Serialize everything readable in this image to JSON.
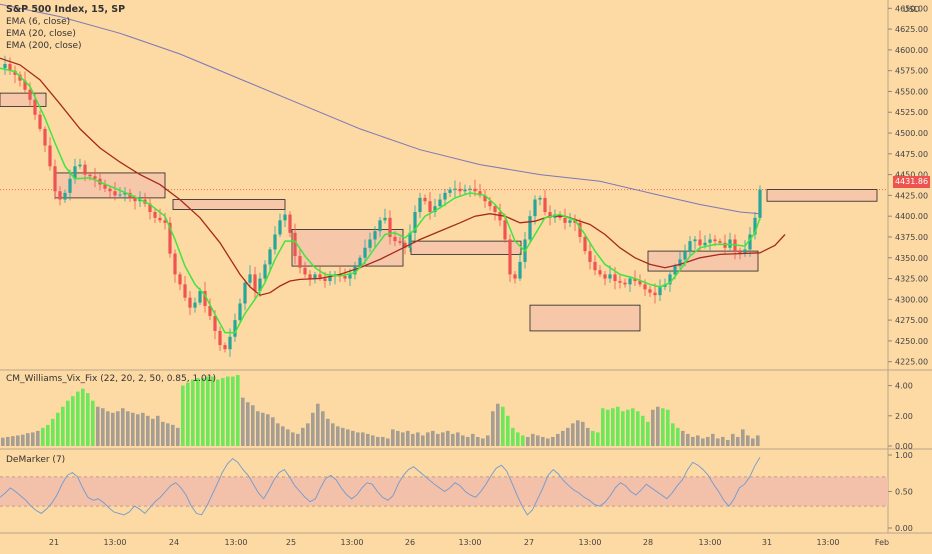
{
  "colors": {
    "background": "#fdd9a4",
    "up_candle": "#26a69a",
    "down_candle": "#ef5350",
    "ema6": "#3ee63e",
    "ema20": "#a52a1a",
    "ema200": "#7b78b8",
    "box_fill": "#f7c7a9",
    "vix_green": "#6de85a",
    "vix_gray": "#a79e93",
    "demarker_line": "#6e9bd1",
    "demarker_band": "#f3c0aa",
    "price_tag": "#ef5350"
  },
  "main_legend": {
    "symbol": "S&P 500 Index, 15, SP",
    "ema6": "EMA (6, close)",
    "ema20": "EMA (20, close)",
    "ema200": "EMA (200, close)"
  },
  "currency": "USD",
  "current_price": "4431.86",
  "vix_title": "CM_Williams_Vix_Fix (22, 20, 2, 50, 0.85, 1.01)",
  "demarker_title": "DeMarker (7)",
  "chart_data": {
    "type": "candlestick",
    "price_axis": {
      "min": 4215,
      "max": 4660,
      "ticks": [
        "4225.00",
        "4250.00",
        "4275.00",
        "4300.00",
        "4325.00",
        "4350.00",
        "4375.00",
        "4400.00",
        "4425.00",
        "4450.00",
        "4475.00",
        "4500.00",
        "4525.00",
        "4550.00",
        "4575.00",
        "4600.00",
        "4625.00",
        "4650.00"
      ]
    },
    "x_axis_labels": [
      "21",
      "13:00",
      "24",
      "13:00",
      "25",
      "13:00",
      "26",
      "13:00",
      "27",
      "13:00",
      "28",
      "13:00",
      "31",
      "13:00",
      "Feb"
    ],
    "close_path": [
      [
        0,
        4578
      ],
      [
        5,
        4583
      ],
      [
        10,
        4575
      ],
      [
        15,
        4570
      ],
      [
        20,
        4563
      ],
      [
        25,
        4552
      ],
      [
        30,
        4540
      ],
      [
        35,
        4522
      ],
      [
        40,
        4505
      ],
      [
        45,
        4485
      ],
      [
        50,
        4460
      ],
      [
        55,
        4430
      ],
      [
        60,
        4420
      ],
      [
        65,
        4428
      ],
      [
        70,
        4445
      ],
      [
        75,
        4460
      ],
      [
        80,
        4462
      ],
      [
        85,
        4450
      ],
      [
        90,
        4448
      ],
      [
        95,
        4445
      ],
      [
        100,
        4438
      ],
      [
        105,
        4433
      ],
      [
        110,
        4430
      ],
      [
        115,
        4425
      ],
      [
        120,
        4426
      ],
      [
        125,
        4428
      ],
      [
        130,
        4422
      ],
      [
        135,
        4418
      ],
      [
        140,
        4420
      ],
      [
        145,
        4415
      ],
      [
        150,
        4405
      ],
      [
        155,
        4398
      ],
      [
        160,
        4395
      ],
      [
        165,
        4392
      ],
      [
        170,
        4355
      ],
      [
        175,
        4330
      ],
      [
        180,
        4318
      ],
      [
        185,
        4302
      ],
      [
        190,
        4290
      ],
      [
        195,
        4296
      ],
      [
        200,
        4310
      ],
      [
        205,
        4292
      ],
      [
        210,
        4280
      ],
      [
        215,
        4262
      ],
      [
        220,
        4245
      ],
      [
        225,
        4240
      ],
      [
        230,
        4255
      ],
      [
        235,
        4275
      ],
      [
        240,
        4295
      ],
      [
        245,
        4320
      ],
      [
        250,
        4330
      ],
      [
        255,
        4310
      ],
      [
        260,
        4325
      ],
      [
        265,
        4342
      ],
      [
        270,
        4360
      ],
      [
        275,
        4378
      ],
      [
        280,
        4395
      ],
      [
        285,
        4402
      ],
      [
        290,
        4380
      ],
      [
        295,
        4352
      ],
      [
        300,
        4338
      ],
      [
        305,
        4330
      ],
      [
        310,
        4325
      ],
      [
        315,
        4330
      ],
      [
        320,
        4325
      ],
      [
        325,
        4322
      ],
      [
        330,
        4328
      ],
      [
        335,
        4330
      ],
      [
        340,
        4328
      ],
      [
        345,
        4325
      ],
      [
        350,
        4330
      ],
      [
        355,
        4340
      ],
      [
        360,
        4350
      ],
      [
        365,
        4362
      ],
      [
        370,
        4372
      ],
      [
        375,
        4382
      ],
      [
        380,
        4395
      ],
      [
        385,
        4398
      ],
      [
        390,
        4375
      ],
      [
        395,
        4370
      ],
      [
        400,
        4368
      ],
      [
        405,
        4362
      ],
      [
        410,
        4380
      ],
      [
        415,
        4405
      ],
      [
        420,
        4422
      ],
      [
        425,
        4418
      ],
      [
        430,
        4405
      ],
      [
        435,
        4412
      ],
      [
        440,
        4420
      ],
      [
        445,
        4428
      ],
      [
        450,
        4432
      ],
      [
        455,
        4433
      ],
      [
        460,
        4430
      ],
      [
        465,
        4432
      ],
      [
        470,
        4433
      ],
      [
        475,
        4430
      ],
      [
        480,
        4425
      ],
      [
        485,
        4418
      ],
      [
        490,
        4412
      ],
      [
        495,
        4405
      ],
      [
        500,
        4395
      ],
      [
        505,
        4372
      ],
      [
        510,
        4330
      ],
      [
        515,
        4325
      ],
      [
        520,
        4345
      ],
      [
        525,
        4372
      ],
      [
        530,
        4400
      ],
      [
        535,
        4420
      ],
      [
        540,
        4422
      ],
      [
        545,
        4405
      ],
      [
        550,
        4398
      ],
      [
        555,
        4402
      ],
      [
        560,
        4398
      ],
      [
        565,
        4392
      ],
      [
        570,
        4395
      ],
      [
        575,
        4392
      ],
      [
        580,
        4375
      ],
      [
        585,
        4358
      ],
      [
        590,
        4345
      ],
      [
        595,
        4335
      ],
      [
        600,
        4330
      ],
      [
        605,
        4325
      ],
      [
        610,
        4330
      ],
      [
        615,
        4322
      ],
      [
        620,
        4320
      ],
      [
        625,
        4318
      ],
      [
        630,
        4325
      ],
      [
        635,
        4322
      ],
      [
        640,
        4318
      ],
      [
        645,
        4312
      ],
      [
        650,
        4308
      ],
      [
        655,
        4305
      ],
      [
        660,
        4315
      ],
      [
        665,
        4318
      ],
      [
        670,
        4330
      ],
      [
        675,
        4340
      ],
      [
        680,
        4348
      ],
      [
        685,
        4358
      ],
      [
        690,
        4370
      ],
      [
        695,
        4372
      ],
      [
        700,
        4365
      ],
      [
        705,
        4368
      ],
      [
        710,
        4372
      ],
      [
        715,
        4370
      ],
      [
        720,
        4368
      ],
      [
        725,
        4362
      ],
      [
        730,
        4372
      ],
      [
        735,
        4358
      ],
      [
        740,
        4355
      ],
      [
        745,
        4360
      ],
      [
        750,
        4378
      ],
      [
        755,
        4398
      ],
      [
        760,
        4432
      ]
    ],
    "ema6_path": [
      [
        0,
        4578
      ],
      [
        15,
        4574
      ],
      [
        30,
        4556
      ],
      [
        45,
        4518
      ],
      [
        55,
        4488
      ],
      [
        65,
        4460
      ],
      [
        75,
        4445
      ],
      [
        90,
        4446
      ],
      [
        110,
        4436
      ],
      [
        130,
        4426
      ],
      [
        150,
        4414
      ],
      [
        165,
        4400
      ],
      [
        175,
        4372
      ],
      [
        185,
        4340
      ],
      [
        195,
        4318
      ],
      [
        205,
        4305
      ],
      [
        215,
        4282
      ],
      [
        225,
        4260
      ],
      [
        235,
        4260
      ],
      [
        245,
        4283
      ],
      [
        255,
        4300
      ],
      [
        265,
        4320
      ],
      [
        275,
        4348
      ],
      [
        285,
        4370
      ],
      [
        295,
        4370
      ],
      [
        305,
        4352
      ],
      [
        315,
        4338
      ],
      [
        325,
        4330
      ],
      [
        340,
        4328
      ],
      [
        355,
        4332
      ],
      [
        365,
        4345
      ],
      [
        375,
        4362
      ],
      [
        385,
        4378
      ],
      [
        395,
        4380
      ],
      [
        405,
        4374
      ],
      [
        415,
        4384
      ],
      [
        425,
        4400
      ],
      [
        440,
        4410
      ],
      [
        455,
        4422
      ],
      [
        470,
        4428
      ],
      [
        485,
        4425
      ],
      [
        495,
        4414
      ],
      [
        505,
        4400
      ],
      [
        515,
        4370
      ],
      [
        525,
        4358
      ],
      [
        535,
        4378
      ],
      [
        545,
        4398
      ],
      [
        560,
        4402
      ],
      [
        575,
        4395
      ],
      [
        585,
        4378
      ],
      [
        595,
        4358
      ],
      [
        605,
        4342
      ],
      [
        620,
        4330
      ],
      [
        635,
        4325
      ],
      [
        650,
        4318
      ],
      [
        660,
        4315
      ],
      [
        670,
        4320
      ],
      [
        680,
        4335
      ],
      [
        690,
        4352
      ],
      [
        700,
        4362
      ],
      [
        715,
        4366
      ],
      [
        730,
        4366
      ],
      [
        745,
        4364
      ],
      [
        755,
        4380
      ],
      [
        760,
        4398
      ]
    ],
    "ema20_path": [
      [
        0,
        4590
      ],
      [
        20,
        4582
      ],
      [
        40,
        4564
      ],
      [
        60,
        4535
      ],
      [
        80,
        4505
      ],
      [
        100,
        4482
      ],
      [
        120,
        4465
      ],
      [
        140,
        4450
      ],
      [
        160,
        4438
      ],
      [
        180,
        4420
      ],
      [
        200,
        4398
      ],
      [
        220,
        4368
      ],
      [
        240,
        4330
      ],
      [
        250,
        4315
      ],
      [
        260,
        4305
      ],
      [
        270,
        4308
      ],
      [
        280,
        4316
      ],
      [
        290,
        4322
      ],
      [
        300,
        4324
      ],
      [
        320,
        4325
      ],
      [
        340,
        4330
      ],
      [
        360,
        4338
      ],
      [
        380,
        4348
      ],
      [
        400,
        4360
      ],
      [
        420,
        4372
      ],
      [
        440,
        4382
      ],
      [
        460,
        4392
      ],
      [
        475,
        4400
      ],
      [
        490,
        4403
      ],
      [
        505,
        4400
      ],
      [
        520,
        4392
      ],
      [
        535,
        4394
      ],
      [
        550,
        4400
      ],
      [
        565,
        4400
      ],
      [
        575,
        4396
      ],
      [
        590,
        4390
      ],
      [
        605,
        4378
      ],
      [
        620,
        4362
      ],
      [
        635,
        4350
      ],
      [
        650,
        4342
      ],
      [
        665,
        4338
      ],
      [
        680,
        4342
      ],
      [
        700,
        4350
      ],
      [
        720,
        4354
      ],
      [
        740,
        4355
      ],
      [
        760,
        4356
      ],
      [
        775,
        4365
      ],
      [
        785,
        4378
      ]
    ],
    "ema200_path": [
      [
        0,
        4655
      ],
      [
        60,
        4640
      ],
      [
        120,
        4620
      ],
      [
        180,
        4595
      ],
      [
        240,
        4565
      ],
      [
        300,
        4535
      ],
      [
        360,
        4505
      ],
      [
        420,
        4480
      ],
      [
        480,
        4462
      ],
      [
        540,
        4450
      ],
      [
        600,
        4442
      ],
      [
        660,
        4425
      ],
      [
        700,
        4414
      ],
      [
        740,
        4405
      ],
      [
        760,
        4403
      ]
    ],
    "boxes": [
      {
        "x0": 0,
        "x1": 46,
        "y0": 4532,
        "y1": 4548
      },
      {
        "x0": 55,
        "x1": 165,
        "y0": 4422,
        "y1": 4452
      },
      {
        "x0": 173,
        "x1": 285,
        "y0": 4408,
        "y1": 4420
      },
      {
        "x0": 292,
        "x1": 403,
        "y0": 4340,
        "y1": 4384
      },
      {
        "x0": 411,
        "x1": 521,
        "y0": 4354,
        "y1": 4370
      },
      {
        "x0": 530,
        "x1": 640,
        "y0": 4262,
        "y1": 4293
      },
      {
        "x0": 648,
        "x1": 758,
        "y0": 4334,
        "y1": 4358
      },
      {
        "x0": 767,
        "x1": 877,
        "y0": 4418,
        "y1": 4432
      }
    ],
    "vix": {
      "ticks": [
        "0.00",
        "2.00",
        "4.00"
      ],
      "max": 4.9,
      "values": [
        0.55,
        0.6,
        0.65,
        0.7,
        0.75,
        0.85,
        0.9,
        1.0,
        1.2,
        1.4,
        1.8,
        2.2,
        2.6,
        3.0,
        3.3,
        3.6,
        3.8,
        3.5,
        3.0,
        2.6,
        2.5,
        2.3,
        2.2,
        2.3,
        2.5,
        2.3,
        2.2,
        2.1,
        2.2,
        2.0,
        1.8,
        2.0,
        1.6,
        1.5,
        1.4,
        1.2,
        4.0,
        4.2,
        4.4,
        4.5,
        4.5,
        4.6,
        4.6,
        4.4,
        4.5,
        4.6,
        4.6,
        4.7,
        3.2,
        2.9,
        2.7,
        2.3,
        2.2,
        2.1,
        1.9,
        1.5,
        1.3,
        1.1,
        0.9,
        0.8,
        1.2,
        1.5,
        2.2,
        2.8,
        2.3,
        1.8,
        1.5,
        1.3,
        1.2,
        1.1,
        1.0,
        0.9,
        0.9,
        0.8,
        0.7,
        0.6,
        0.6,
        0.5,
        1.1,
        1.0,
        0.9,
        1.0,
        0.8,
        0.9,
        0.7,
        0.9,
        1.0,
        0.8,
        0.9,
        1.0,
        0.8,
        0.9,
        0.7,
        0.6,
        0.8,
        0.6,
        0.5,
        0.7,
        2.3,
        2.8,
        2.6,
        2.0,
        1.2,
        0.9,
        0.7,
        0.6,
        0.8,
        0.7,
        0.6,
        0.5,
        0.6,
        0.8,
        1.0,
        1.2,
        1.5,
        1.7,
        1.6,
        1.2,
        1.0,
        0.9,
        2.5,
        2.4,
        2.5,
        2.6,
        2.3,
        2.4,
        2.5,
        2.3,
        2.0,
        1.6,
        2.4,
        2.6,
        2.5,
        2.4,
        1.5,
        1.2,
        1.0,
        0.8,
        0.6,
        0.7,
        0.5,
        0.6,
        0.8,
        0.5,
        0.6,
        0.4,
        0.8,
        0.6,
        1.1,
        0.7,
        0.5,
        0.7
      ],
      "green_ranges": [
        [
          8,
          18
        ],
        [
          36,
          47
        ],
        [
          100,
          104
        ],
        [
          118,
          129
        ],
        [
          132,
          135
        ]
      ]
    },
    "demarker": {
      "ticks": [
        "0.00",
        "0.50",
        "1.00"
      ],
      "band": [
        0.3,
        0.7
      ],
      "values": [
        0.42,
        0.48,
        0.55,
        0.5,
        0.44,
        0.38,
        0.3,
        0.24,
        0.2,
        0.26,
        0.34,
        0.45,
        0.6,
        0.72,
        0.76,
        0.7,
        0.55,
        0.42,
        0.38,
        0.4,
        0.35,
        0.28,
        0.22,
        0.2,
        0.18,
        0.22,
        0.3,
        0.26,
        0.2,
        0.28,
        0.36,
        0.42,
        0.5,
        0.58,
        0.62,
        0.55,
        0.45,
        0.3,
        0.2,
        0.18,
        0.3,
        0.45,
        0.6,
        0.76,
        0.88,
        0.95,
        0.9,
        0.8,
        0.72,
        0.6,
        0.48,
        0.4,
        0.52,
        0.66,
        0.76,
        0.8,
        0.7,
        0.58,
        0.5,
        0.42,
        0.36,
        0.4,
        0.55,
        0.68,
        0.72,
        0.66,
        0.55,
        0.46,
        0.4,
        0.45,
        0.55,
        0.62,
        0.6,
        0.5,
        0.42,
        0.38,
        0.44,
        0.6,
        0.72,
        0.8,
        0.84,
        0.78,
        0.72,
        0.66,
        0.6,
        0.55,
        0.5,
        0.55,
        0.62,
        0.58,
        0.5,
        0.45,
        0.42,
        0.5,
        0.6,
        0.72,
        0.82,
        0.86,
        0.78,
        0.62,
        0.45,
        0.3,
        0.18,
        0.25,
        0.4,
        0.55,
        0.72,
        0.8,
        0.74,
        0.65,
        0.58,
        0.52,
        0.48,
        0.42,
        0.38,
        0.32,
        0.3,
        0.35,
        0.44,
        0.55,
        0.62,
        0.58,
        0.5,
        0.45,
        0.52,
        0.6,
        0.55,
        0.5,
        0.45,
        0.4,
        0.48,
        0.58,
        0.66,
        0.8,
        0.9,
        0.86,
        0.8,
        0.72,
        0.6,
        0.5,
        0.38,
        0.3,
        0.4,
        0.55,
        0.6,
        0.7,
        0.85,
        0.97
      ]
    }
  }
}
